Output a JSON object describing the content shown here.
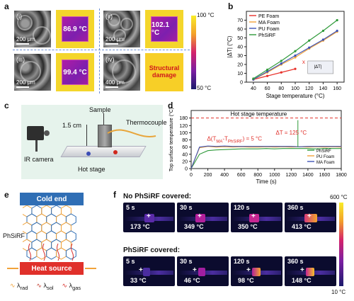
{
  "panel_labels": {
    "a": "a",
    "b": "b",
    "c": "c",
    "d": "d",
    "e": "e",
    "f": "f"
  },
  "panel_a": {
    "cells": [
      {
        "label": "(i)",
        "scale": "200 μm",
        "temp": "86.9 °C"
      },
      {
        "label": "(ii)",
        "scale": "200 μm",
        "temp": "102.1 °C"
      },
      {
        "label": "(iii)",
        "scale": "200 μm",
        "temp": "99.4 °C"
      },
      {
        "label": "(iv)",
        "scale": "400 μm",
        "temp": "Structural damage"
      }
    ],
    "colorbar_top": "100 °C",
    "colorbar_bottom": "50 °C"
  },
  "chart_data": [
    {
      "type": "line",
      "xlabel": "Stage temperature (°C)",
      "ylabel": "|ΔT| (°C)",
      "x": [
        40,
        60,
        80,
        100,
        120,
        140,
        160
      ],
      "xlim": [
        30,
        170
      ],
      "ylim": [
        0,
        80
      ],
      "xticks": [
        40,
        60,
        80,
        100,
        120,
        140,
        160
      ],
      "yticks": [
        0,
        10,
        20,
        30,
        40,
        50,
        60,
        70
      ],
      "legend_position": "top-left",
      "series": [
        {
          "name": "PE Foam",
          "color": "#e8312a",
          "x": [
            40,
            60,
            80,
            100
          ],
          "values": [
            3,
            7,
            11,
            15
          ]
        },
        {
          "name": "MA Foam",
          "color": "#f2a33a",
          "x": [
            40,
            60,
            80,
            100,
            120,
            140,
            160
          ],
          "values": [
            3,
            11,
            20,
            28,
            38,
            47,
            57
          ]
        },
        {
          "name": "PU Foam",
          "color": "#3f54b5",
          "x": [
            40,
            60,
            80,
            100,
            120,
            140,
            160
          ],
          "values": [
            3,
            12,
            21,
            30,
            39,
            48,
            58
          ]
        },
        {
          "name": "PhSiRF",
          "color": "#2f9a3a",
          "x": [
            40,
            60,
            80,
            100,
            120,
            140,
            160
          ],
          "values": [
            4,
            14,
            24,
            35,
            47,
            58,
            70
          ]
        }
      ],
      "annotations": {
        "cross": "x",
        "inset_label": "|ΔT|"
      }
    },
    {
      "type": "line",
      "xlabel": "Time (s)",
      "ylabel": "Top surface temperature (°C)",
      "x": [
        0,
        100,
        200,
        300,
        400,
        500,
        600,
        700,
        800,
        900,
        1000,
        1100,
        1200,
        1300,
        1400,
        1500,
        1600,
        1700,
        1800
      ],
      "xlim": [
        0,
        1800
      ],
      "ylim": [
        0,
        200
      ],
      "xticks": [
        0,
        200,
        400,
        600,
        800,
        1000,
        1200,
        1400,
        1600,
        1800
      ],
      "yticks": [
        0,
        20,
        40,
        60,
        80,
        100,
        120,
        180
      ],
      "legend_position": "bottom-right",
      "reference_line": {
        "label": "Hot stage temperature",
        "value": 180
      },
      "series": [
        {
          "name": "PhSiRF",
          "color": "#2f9a3a",
          "values": [
            0,
            40,
            50,
            52,
            53,
            54,
            55,
            55,
            55,
            56,
            55,
            56,
            56,
            56,
            56,
            55,
            56,
            56,
            56
          ]
        },
        {
          "name": "PU Foam",
          "color": "#f2a33a",
          "values": [
            0,
            58,
            62,
            60,
            61,
            60,
            61,
            60,
            60,
            61,
            60,
            61,
            60,
            61,
            60,
            61,
            60,
            61,
            60
          ]
        },
        {
          "name": "MA Foam",
          "color": "#3f54b5",
          "values": [
            0,
            60,
            63,
            62,
            63,
            62,
            62,
            62,
            62,
            62,
            62,
            62,
            62,
            61,
            62,
            62,
            62,
            62,
            62
          ]
        }
      ],
      "annotations": {
        "delta_t": "ΔT = 125 °C",
        "delta_ma": "Δ(T",
        "delta_ma_sub": "MA",
        "delta_ma_mid": "-T",
        "delta_ma_sub2": "PhSiRF",
        "delta_ma_end": ") = 5 °C"
      }
    }
  ],
  "panel_c": {
    "sample": "Sample",
    "distance": "1.5 cm",
    "thermocouple": "Thermocouple",
    "ir_camera": "IR camera",
    "hot_stage": "Hot stage"
  },
  "panel_e": {
    "cold_end": "Cold end",
    "material": "PhSiRF",
    "heat_source": "Heat source",
    "legend": [
      {
        "symbol": "λ",
        "sub": "rad",
        "color": "#f2a33a"
      },
      {
        "symbol": "λ",
        "sub": "sol",
        "color": "#c0392b"
      },
      {
        "symbol": "λ",
        "sub": "gas",
        "color": "#d9302c"
      }
    ]
  },
  "panel_f": {
    "row1_title": "No PhSiRF covered:",
    "row2_title": "PhSiRF covered:",
    "row1": [
      {
        "t": "5 s",
        "v": "173 °C"
      },
      {
        "t": "30 s",
        "v": "349 °C"
      },
      {
        "t": "120 s",
        "v": "350 °C"
      },
      {
        "t": "360 s",
        "v": "413 °C"
      }
    ],
    "row2": [
      {
        "t": "5 s",
        "v": "33 °C"
      },
      {
        "t": "30 s",
        "v": "46 °C"
      },
      {
        "t": "120 s",
        "v": "98 °C"
      },
      {
        "t": "360 s",
        "v": "148 °C"
      }
    ],
    "colorbar_top": "600 °C",
    "colorbar_bottom": "10 °C",
    "plus": "+"
  }
}
